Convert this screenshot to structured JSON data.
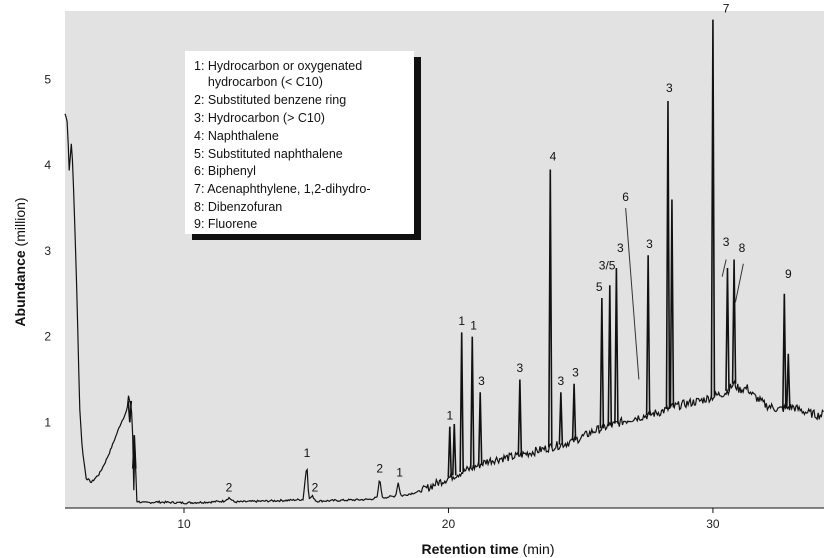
{
  "chart_data": {
    "type": "line",
    "xlabel": {
      "bold": "Retention time",
      "rest": " (min)"
    },
    "ylabel": {
      "bold": "Abundance",
      "rest": " (million)"
    },
    "xlim": [
      5.5,
      34.2
    ],
    "ylim": [
      0,
      5.8
    ],
    "x_ticks": [
      10,
      20,
      30
    ],
    "y_ticks": [
      1,
      2,
      3,
      4,
      5
    ],
    "grid": false,
    "plot_background": "#e2e2e2",
    "line_color": "#111111",
    "legend": {
      "placement": "top-center",
      "entries": [
        "1: Hydrocarbon or oxygenated",
        "    hydrocarbon (< C10)",
        "2: Substituted benzene ring",
        "3: Hydrocarbon (> C10)",
        "4: Naphthalene",
        "5: Substituted naphthalene",
        "6: Biphenyl",
        "7: Acenaphthylene, 1,2-dihydro-",
        "8: Dibenzofuran",
        "9: Fluorene"
      ]
    },
    "baseline": [
      [
        5.5,
        4.6
      ],
      [
        5.6,
        4.5
      ],
      [
        5.65,
        3.9
      ],
      [
        5.75,
        4.3
      ],
      [
        5.85,
        3.5
      ],
      [
        5.95,
        2.5
      ],
      [
        6.05,
        1.2
      ],
      [
        6.15,
        0.7
      ],
      [
        6.3,
        0.35
      ],
      [
        6.5,
        0.3
      ],
      [
        6.8,
        0.4
      ],
      [
        7.0,
        0.52
      ],
      [
        7.2,
        0.66
      ],
      [
        7.4,
        0.82
      ],
      [
        7.6,
        0.98
      ],
      [
        7.75,
        1.08
      ],
      [
        7.85,
        1.15
      ],
      [
        7.9,
        1.3
      ],
      [
        8.0,
        1.2
      ],
      [
        8.05,
        1.0
      ],
      [
        8.1,
        0.2
      ],
      [
        8.15,
        0.85
      ],
      [
        8.2,
        0.08
      ],
      [
        8.5,
        0.06
      ],
      [
        9.0,
        0.07
      ],
      [
        10.0,
        0.06
      ],
      [
        11.0,
        0.07
      ],
      [
        11.5,
        0.08
      ],
      [
        11.7,
        0.12
      ],
      [
        11.9,
        0.07
      ],
      [
        13.0,
        0.08
      ],
      [
        14.0,
        0.09
      ],
      [
        14.5,
        0.1
      ],
      [
        14.65,
        0.52
      ],
      [
        14.72,
        0.1
      ],
      [
        14.85,
        0.14
      ],
      [
        15.0,
        0.08
      ],
      [
        16.0,
        0.09
      ],
      [
        17.0,
        0.1
      ],
      [
        17.3,
        0.12
      ],
      [
        17.4,
        0.35
      ],
      [
        17.5,
        0.12
      ],
      [
        18.0,
        0.14
      ],
      [
        18.1,
        0.3
      ],
      [
        18.2,
        0.14
      ],
      [
        19.0,
        0.2
      ],
      [
        19.5,
        0.28
      ],
      [
        20.0,
        0.35
      ],
      [
        20.5,
        0.42
      ],
      [
        21.0,
        0.48
      ],
      [
        21.5,
        0.55
      ],
      [
        22.0,
        0.58
      ],
      [
        22.5,
        0.6
      ],
      [
        23.0,
        0.64
      ],
      [
        23.5,
        0.68
      ],
      [
        24.0,
        0.72
      ],
      [
        24.5,
        0.76
      ],
      [
        25.0,
        0.82
      ],
      [
        25.5,
        0.9
      ],
      [
        26.0,
        0.95
      ],
      [
        26.5,
        1.0
      ],
      [
        27.0,
        1.05
      ],
      [
        27.5,
        1.08
      ],
      [
        28.0,
        1.12
      ],
      [
        28.5,
        1.18
      ],
      [
        29.0,
        1.22
      ],
      [
        29.5,
        1.25
      ],
      [
        30.0,
        1.3
      ],
      [
        30.5,
        1.35
      ],
      [
        30.8,
        1.45
      ],
      [
        31.0,
        1.38
      ],
      [
        31.3,
        1.4
      ],
      [
        31.5,
        1.32
      ],
      [
        32.0,
        1.2
      ],
      [
        32.5,
        1.15
      ],
      [
        33.0,
        1.18
      ],
      [
        33.5,
        1.12
      ],
      [
        34.0,
        1.08
      ],
      [
        34.2,
        1.1
      ]
    ],
    "peaks": [
      [
        7.95,
        1.0
      ],
      [
        8.12,
        0.85
      ],
      [
        20.05,
        0.95
      ],
      [
        20.22,
        0.98
      ],
      [
        20.5,
        2.05
      ],
      [
        20.9,
        2.0
      ],
      [
        21.2,
        1.35
      ],
      [
        22.7,
        1.5
      ],
      [
        23.85,
        3.95
      ],
      [
        24.25,
        1.35
      ],
      [
        24.75,
        1.45
      ],
      [
        25.8,
        2.45
      ],
      [
        26.1,
        2.6
      ],
      [
        26.35,
        2.8
      ],
      [
        27.55,
        2.95
      ],
      [
        28.3,
        4.75
      ],
      [
        28.45,
        3.6
      ],
      [
        30.0,
        5.7
      ],
      [
        30.55,
        2.8
      ],
      [
        30.8,
        2.9
      ],
      [
        32.7,
        2.5
      ],
      [
        32.85,
        1.8
      ]
    ],
    "peak_labels": [
      {
        "text": "2",
        "x": 11.7,
        "y": 0.16
      },
      {
        "text": "1",
        "x": 14.65,
        "y": 0.56
      },
      {
        "text": "2",
        "x": 14.95,
        "y": 0.16
      },
      {
        "text": "2",
        "x": 17.4,
        "y": 0.38
      },
      {
        "text": "1",
        "x": 18.15,
        "y": 0.33
      },
      {
        "text": "1",
        "x": 20.05,
        "y": 1.0
      },
      {
        "text": "1",
        "x": 20.5,
        "y": 2.1
      },
      {
        "text": "1",
        "x": 20.95,
        "y": 2.05
      },
      {
        "text": "3",
        "x": 21.25,
        "y": 1.4
      },
      {
        "text": "3",
        "x": 22.7,
        "y": 1.55
      },
      {
        "text": "4",
        "x": 23.95,
        "y": 4.02
      },
      {
        "text": "3",
        "x": 24.25,
        "y": 1.4
      },
      {
        "text": "3",
        "x": 24.8,
        "y": 1.5
      },
      {
        "text": "5",
        "x": 25.7,
        "y": 2.5
      },
      {
        "text": "3/5",
        "x": 26.0,
        "y": 2.75
      },
      {
        "text": "3",
        "x": 26.5,
        "y": 2.95
      },
      {
        "text": "6",
        "x": 26.7,
        "y": 3.55
      },
      {
        "text": "3",
        "x": 27.6,
        "y": 3.0
      },
      {
        "text": "3",
        "x": 28.35,
        "y": 4.82
      },
      {
        "text": "7",
        "x": 30.5,
        "y": 5.75
      },
      {
        "text": "3",
        "x": 30.5,
        "y": 3.02
      },
      {
        "text": "8",
        "x": 31.1,
        "y": 2.95
      },
      {
        "text": "9",
        "x": 32.85,
        "y": 2.65
      }
    ],
    "leader_lines": [
      [
        26.7,
        3.5,
        27.2,
        1.5
      ],
      [
        30.5,
        2.9,
        30.35,
        2.7
      ],
      [
        31.15,
        2.85,
        30.85,
        2.4
      ]
    ]
  }
}
